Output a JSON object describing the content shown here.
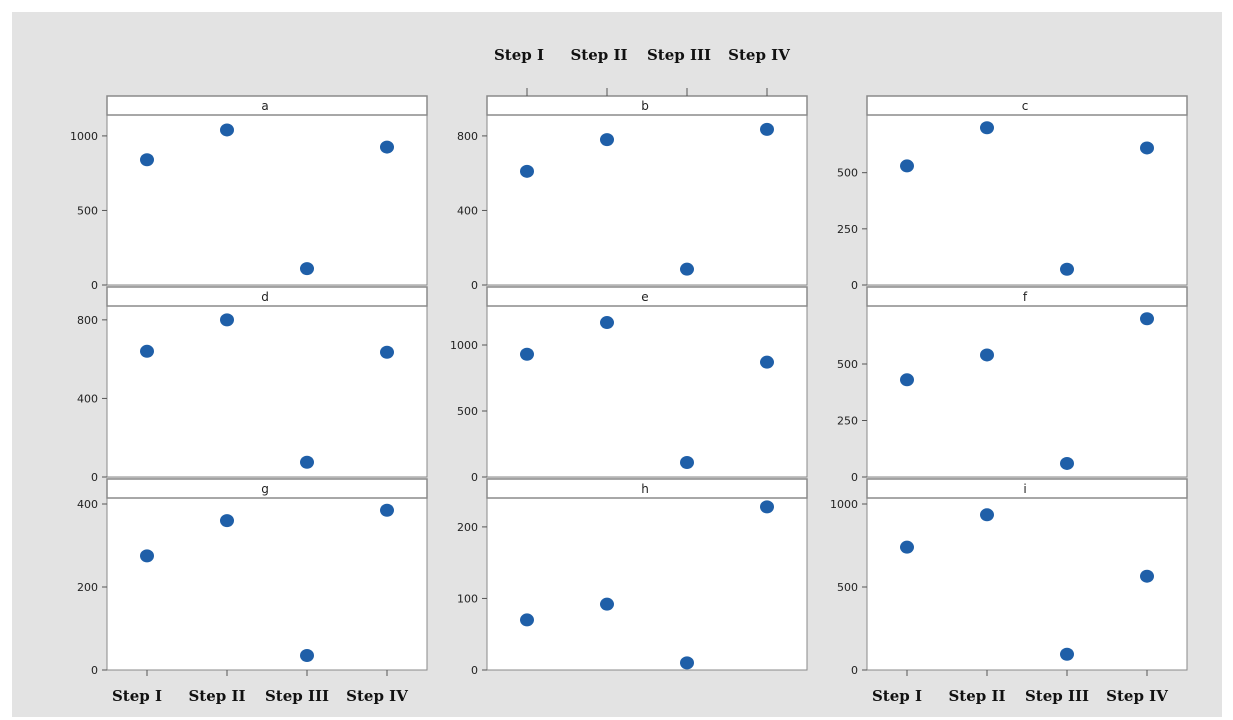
{
  "chart_data": {
    "type": "scatter",
    "categories": [
      "Step I",
      "Step II",
      "Step III",
      "Step IV"
    ],
    "marker_color": "#1f5fa8",
    "panels": [
      {
        "label": "a",
        "values": [
          840,
          1040,
          110,
          925
        ],
        "yticks": [
          0,
          500,
          1000
        ],
        "ylim": [
          0,
          1100
        ]
      },
      {
        "label": "b",
        "values": [
          610,
          780,
          85,
          835
        ],
        "yticks": [
          0,
          400,
          800
        ],
        "ylim": [
          0,
          880
        ]
      },
      {
        "label": "c",
        "values": [
          530,
          700,
          70,
          610
        ],
        "yticks": [
          0,
          250,
          500
        ],
        "ylim": [
          0,
          730
        ]
      },
      {
        "label": "d",
        "values": [
          640,
          800,
          75,
          635
        ],
        "yticks": [
          0,
          400,
          800
        ],
        "ylim": [
          0,
          840
        ]
      },
      {
        "label": "e",
        "values": [
          930,
          1170,
          110,
          870
        ],
        "yticks": [
          0,
          500,
          1000
        ],
        "ylim": [
          0,
          1250
        ]
      },
      {
        "label": "f",
        "values": [
          430,
          540,
          60,
          700
        ],
        "yticks": [
          0,
          250,
          500
        ],
        "ylim": [
          0,
          730
        ]
      },
      {
        "label": "g",
        "values": [
          275,
          360,
          35,
          385
        ],
        "yticks": [
          0,
          200,
          400
        ],
        "ylim": [
          0,
          400
        ]
      },
      {
        "label": "h",
        "values": [
          70,
          92,
          10,
          228
        ],
        "yticks": [
          0,
          100,
          200
        ],
        "ylim": [
          0,
          232
        ]
      },
      {
        "label": "i",
        "values": [
          740,
          935,
          95,
          565
        ],
        "yticks": [
          0,
          500,
          1000
        ],
        "ylim": [
          0,
          1000
        ]
      }
    ]
  }
}
